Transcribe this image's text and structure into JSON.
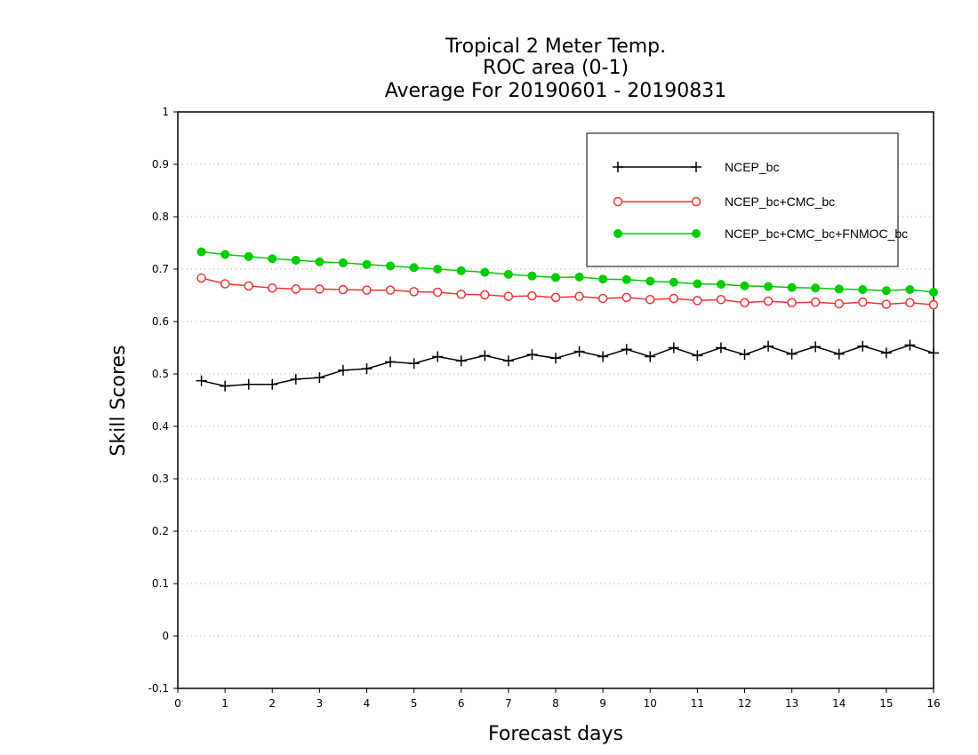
{
  "chart_data": {
    "type": "line",
    "title": [
      "Tropical 2 Meter Temp.",
      "ROC area (0-1)",
      "Average For 20190601 - 20190831"
    ],
    "xlabel": "Forecast days",
    "ylabel": "Skill Scores",
    "xlim": [
      0,
      16
    ],
    "ylim": [
      -0.1,
      1
    ],
    "xticks": [
      "0",
      "1",
      "2",
      "3",
      "4",
      "5",
      "6",
      "7",
      "8",
      "9",
      "10",
      "11",
      "12",
      "13",
      "14",
      "15",
      "16"
    ],
    "yticks": [
      "-0.1",
      "0",
      "0.1",
      "0.2",
      "0.3",
      "0.4",
      "0.5",
      "0.6",
      "0.7",
      "0.8",
      "0.9",
      "1"
    ],
    "grid": "horizontal dotted",
    "legend_position": "top-right",
    "x": [
      0.5,
      1,
      1.5,
      2,
      2.5,
      3,
      3.5,
      4,
      4.5,
      5,
      5.5,
      6,
      6.5,
      7,
      7.5,
      8,
      8.5,
      9,
      9.5,
      10,
      10.5,
      11,
      11.5,
      12,
      12.5,
      13,
      13.5,
      14,
      14.5,
      15,
      15.5,
      16
    ],
    "series": [
      {
        "name": "NCEP_bc",
        "color": "#000000",
        "marker": "plus",
        "values": [
          0.487,
          0.477,
          0.48,
          0.48,
          0.49,
          0.493,
          0.507,
          0.51,
          0.523,
          0.52,
          0.533,
          0.525,
          0.535,
          0.525,
          0.537,
          0.53,
          0.543,
          0.533,
          0.547,
          0.533,
          0.55,
          0.535,
          0.55,
          0.537,
          0.553,
          0.538,
          0.552,
          0.538,
          0.553,
          0.54,
          0.555,
          0.54
        ]
      },
      {
        "name": "NCEP_bc+CMC_bc",
        "color": "#ee3333",
        "marker": "open-circle",
        "values": [
          0.683,
          0.672,
          0.668,
          0.664,
          0.662,
          0.662,
          0.661,
          0.66,
          0.66,
          0.657,
          0.656,
          0.652,
          0.651,
          0.648,
          0.649,
          0.646,
          0.648,
          0.644,
          0.646,
          0.642,
          0.644,
          0.64,
          0.642,
          0.636,
          0.639,
          0.636,
          0.637,
          0.634,
          0.637,
          0.633,
          0.636,
          0.632
        ]
      },
      {
        "name": "NCEP_bc+CMC_bc+FNMOC_bc",
        "color": "#00cc00",
        "marker": "filled-circle",
        "values": [
          0.733,
          0.728,
          0.724,
          0.72,
          0.717,
          0.714,
          0.712,
          0.709,
          0.706,
          0.703,
          0.7,
          0.697,
          0.694,
          0.69,
          0.687,
          0.684,
          0.685,
          0.681,
          0.68,
          0.677,
          0.675,
          0.672,
          0.671,
          0.668,
          0.667,
          0.665,
          0.664,
          0.662,
          0.661,
          0.659,
          0.661,
          0.656
        ]
      }
    ]
  }
}
